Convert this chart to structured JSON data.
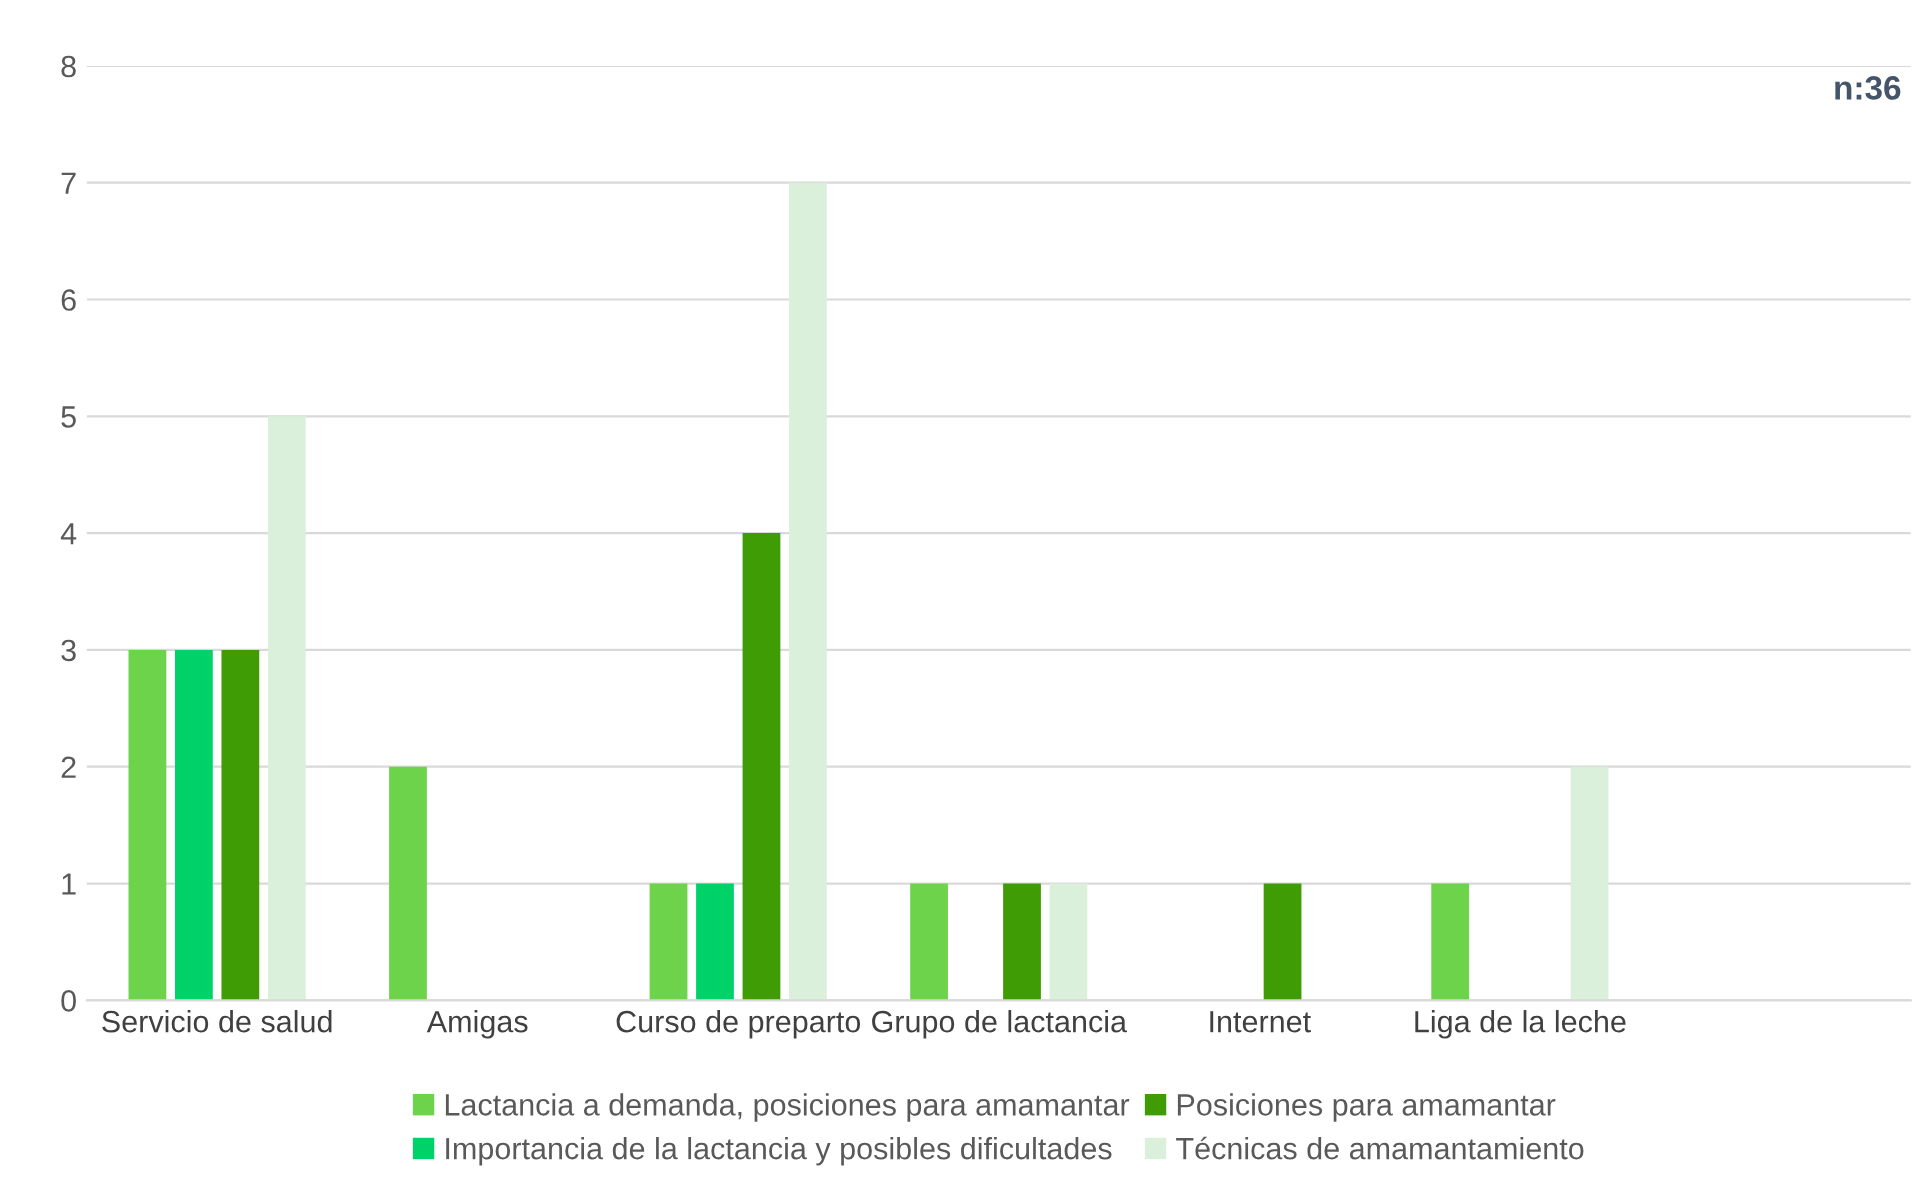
{
  "chart_data": {
    "type": "bar",
    "categories": [
      "Servicio de salud",
      "Amigas",
      "Curso de preparto",
      "Grupo de lactancia",
      "Internet",
      "Liga de la leche",
      null
    ],
    "series": [
      {
        "name": "Lactancia a demanda, posiciones para amamantar",
        "color": "#6dd34a",
        "values": [
          3,
          2,
          1,
          1,
          0,
          1,
          null
        ]
      },
      {
        "name": "Importancia de la lactancia y posibles dificultades",
        "color": "#00d26a",
        "values": [
          3,
          0,
          1,
          0,
          0,
          0,
          null
        ]
      },
      {
        "name": "Posiciones para amamantar",
        "color": "#3f9c05",
        "values": [
          3,
          0,
          4,
          1,
          1,
          0,
          null
        ]
      },
      {
        "name": "Técnicas de amamantamiento",
        "color": "#dbf0da",
        "values": [
          5,
          0,
          7,
          1,
          0,
          2,
          null
        ]
      }
    ],
    "ylim": [
      0,
      8
    ],
    "yticks": [
      0,
      1,
      2,
      3,
      4,
      5,
      6,
      7,
      8
    ],
    "grid": "y",
    "legend": "bottom",
    "annotations": [
      "n:36"
    ]
  }
}
